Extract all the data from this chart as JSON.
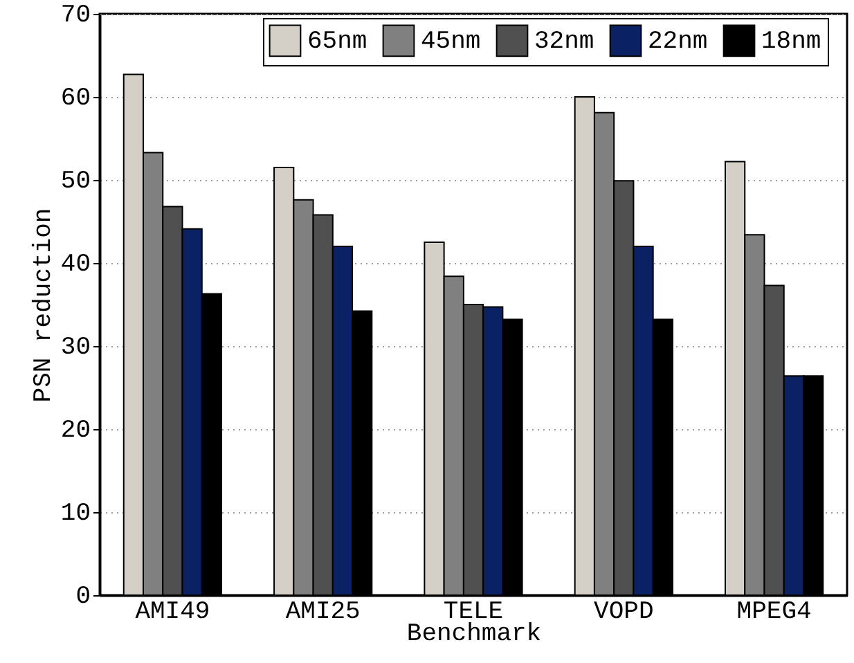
{
  "chart_data": {
    "type": "bar",
    "xlabel": "Benchmark",
    "ylabel": "PSN reduction",
    "categories": [
      "AMI49",
      "AMI25",
      "TELE",
      "VOPD",
      "MPEG4"
    ],
    "series": [
      {
        "name": "65nm",
        "color": "#d4d0c8",
        "values": [
          62.7,
          51.5,
          42.5,
          60.0,
          52.2
        ]
      },
      {
        "name": "45nm",
        "color": "#808080",
        "values": [
          53.3,
          47.6,
          38.4,
          58.1,
          43.4
        ]
      },
      {
        "name": "32nm",
        "color": "#505050",
        "values": [
          46.8,
          45.8,
          35.0,
          49.9,
          37.3
        ]
      },
      {
        "name": "22nm",
        "color": "#0a2164",
        "values": [
          44.1,
          42.0,
          34.7,
          42.0,
          26.4
        ]
      },
      {
        "name": "18nm",
        "color": "#000000",
        "values": [
          36.3,
          34.2,
          33.2,
          33.2,
          26.4
        ]
      }
    ],
    "ylim": [
      0,
      70
    ],
    "yticks": [
      0,
      10,
      20,
      30,
      40,
      50,
      60,
      70
    ],
    "grid": "y",
    "legend": "top"
  }
}
